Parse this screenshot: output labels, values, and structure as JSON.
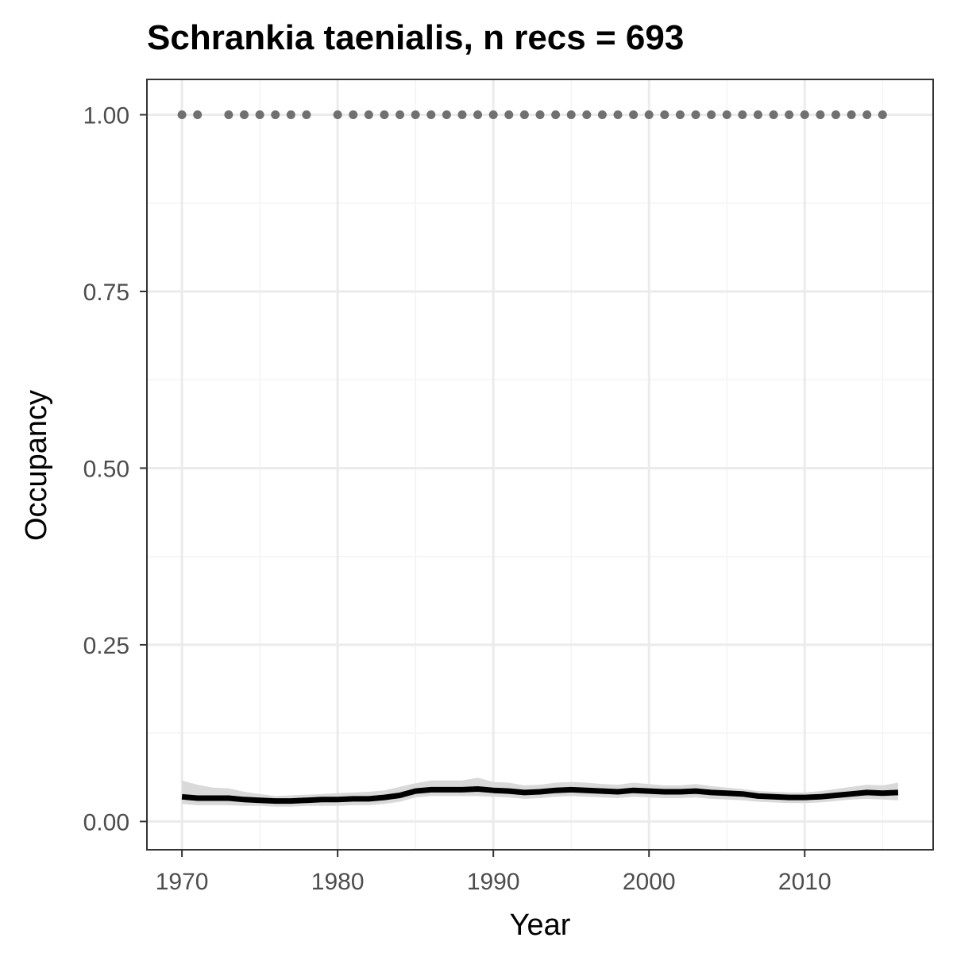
{
  "chart_data": {
    "type": "line",
    "title": "Schrankia taenialis, n recs = 693",
    "xlabel": "Year",
    "ylabel": "Occupancy",
    "xlim": [
      1967.75,
      2018.25
    ],
    "ylim": [
      -0.04,
      1.05
    ],
    "x_ticks": [
      1970,
      1980,
      1990,
      2000,
      2010
    ],
    "y_ticks": [
      0,
      0.25,
      0.5,
      0.75,
      1.0
    ],
    "y_tick_labels": [
      "0.00",
      "0.25",
      "0.50",
      "0.75",
      "1.00"
    ],
    "grid": true,
    "legend": "none",
    "series": [
      {
        "kind": "line",
        "x": [
          1970,
          1971,
          1972,
          1973,
          1974,
          1975,
          1976,
          1977,
          1978,
          1979,
          1980,
          1981,
          1982,
          1983,
          1984,
          1985,
          1986,
          1987,
          1988,
          1989,
          1990,
          1991,
          1992,
          1993,
          1994,
          1995,
          1996,
          1997,
          1998,
          1999,
          2000,
          2001,
          2002,
          2003,
          2004,
          2005,
          2006,
          2007,
          2008,
          2009,
          2010,
          2011,
          2012,
          2013,
          2014,
          2015,
          2016
        ],
        "values": [
          0.035,
          0.033,
          0.033,
          0.033,
          0.031,
          0.03,
          0.029,
          0.029,
          0.03,
          0.031,
          0.031,
          0.032,
          0.032,
          0.034,
          0.037,
          0.043,
          0.045,
          0.045,
          0.045,
          0.046,
          0.044,
          0.043,
          0.041,
          0.042,
          0.044,
          0.045,
          0.044,
          0.043,
          0.042,
          0.044,
          0.043,
          0.042,
          0.042,
          0.043,
          0.041,
          0.04,
          0.039,
          0.036,
          0.035,
          0.034,
          0.034,
          0.035,
          0.037,
          0.039,
          0.041,
          0.04,
          0.041
        ],
        "lower": [
          0.025,
          0.023,
          0.023,
          0.023,
          0.022,
          0.022,
          0.021,
          0.021,
          0.022,
          0.022,
          0.022,
          0.023,
          0.023,
          0.025,
          0.028,
          0.034,
          0.036,
          0.036,
          0.036,
          0.036,
          0.035,
          0.034,
          0.032,
          0.033,
          0.035,
          0.036,
          0.035,
          0.034,
          0.033,
          0.035,
          0.034,
          0.033,
          0.033,
          0.034,
          0.032,
          0.031,
          0.03,
          0.028,
          0.027,
          0.026,
          0.026,
          0.027,
          0.029,
          0.031,
          0.032,
          0.031,
          0.03
        ],
        "upper": [
          0.058,
          0.052,
          0.048,
          0.047,
          0.042,
          0.039,
          0.036,
          0.037,
          0.038,
          0.039,
          0.04,
          0.041,
          0.042,
          0.044,
          0.049,
          0.054,
          0.058,
          0.058,
          0.058,
          0.062,
          0.056,
          0.055,
          0.051,
          0.052,
          0.055,
          0.056,
          0.055,
          0.053,
          0.052,
          0.055,
          0.053,
          0.051,
          0.051,
          0.053,
          0.05,
          0.048,
          0.046,
          0.043,
          0.042,
          0.041,
          0.041,
          0.043,
          0.046,
          0.049,
          0.052,
          0.051,
          0.055
        ]
      },
      {
        "kind": "points",
        "x": [
          1970,
          1971,
          1973,
          1974,
          1975,
          1976,
          1977,
          1978,
          1980,
          1981,
          1982,
          1983,
          1984,
          1985,
          1986,
          1987,
          1988,
          1989,
          1990,
          1991,
          1992,
          1993,
          1994,
          1995,
          1996,
          1997,
          1998,
          1999,
          2000,
          2001,
          2002,
          2003,
          2004,
          2005,
          2006,
          2007,
          2008,
          2009,
          2010,
          2011,
          2012,
          2013,
          2014,
          2015
        ],
        "values": [
          1,
          1,
          1,
          1,
          1,
          1,
          1,
          1,
          1,
          1,
          1,
          1,
          1,
          1,
          1,
          1,
          1,
          1,
          1,
          1,
          1,
          1,
          1,
          1,
          1,
          1,
          1,
          1,
          1,
          1,
          1,
          1,
          1,
          1,
          1,
          1,
          1,
          1,
          1,
          1,
          1,
          1,
          1,
          1
        ]
      }
    ],
    "colors": {
      "line": "#000000",
      "ribbon": "#d9d9d9",
      "points": "#707070",
      "grid_major": "#ebebeb",
      "grid_minor": "#f4f4f4",
      "panel_border": "#333333",
      "tick_text": "#4d4d4d"
    }
  }
}
